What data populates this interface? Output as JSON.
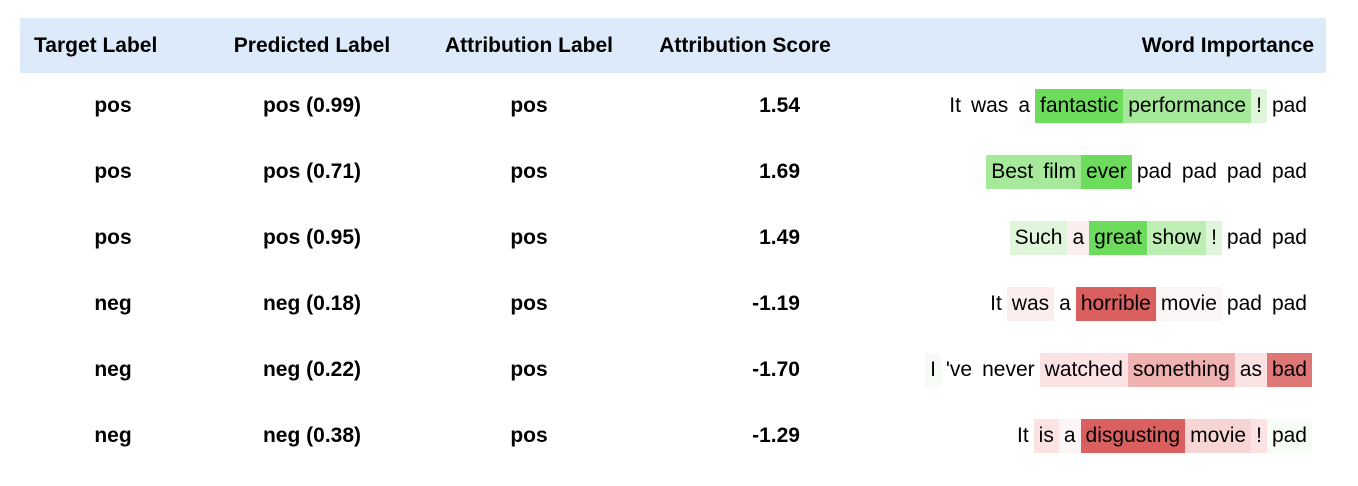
{
  "header": {
    "target_label": "Target Label",
    "predicted_label": "Predicted Label",
    "attribution_label": "Attribution Label",
    "attribution_score": "Attribution Score",
    "word_importance": "Word Importance"
  },
  "rows": [
    {
      "target": "pos",
      "predicted": "pos (0.99)",
      "attribution_label": "pos",
      "score": "1.54",
      "words": [
        {
          "text": "It",
          "color": "#ffffff"
        },
        {
          "text": "was",
          "color": "#ffffff"
        },
        {
          "text": "a",
          "color": "#ffffff"
        },
        {
          "text": "fantastic",
          "color": "#6ddc5c"
        },
        {
          "text": "performance",
          "color": "#a6e99a"
        },
        {
          "text": "!",
          "color": "#dff6da"
        },
        {
          "text": "pad",
          "color": "#ffffff"
        }
      ]
    },
    {
      "target": "pos",
      "predicted": "pos (0.71)",
      "attribution_label": "pos",
      "score": "1.69",
      "words": [
        {
          "text": "Best",
          "color": "#a6e99a"
        },
        {
          "text": "film",
          "color": "#a6e99a"
        },
        {
          "text": "ever",
          "color": "#6ddc5c"
        },
        {
          "text": "pad",
          "color": "#ffffff"
        },
        {
          "text": "pad",
          "color": "#ffffff"
        },
        {
          "text": "pad",
          "color": "#ffffff"
        },
        {
          "text": "pad",
          "color": "#ffffff"
        }
      ]
    },
    {
      "target": "pos",
      "predicted": "pos (0.95)",
      "attribution_label": "pos",
      "score": "1.49",
      "words": [
        {
          "text": "Such",
          "color": "#dff6da"
        },
        {
          "text": "a",
          "color": "#fcedee"
        },
        {
          "text": "great",
          "color": "#6ddc5c"
        },
        {
          "text": "show",
          "color": "#bdeeb3"
        },
        {
          "text": "!",
          "color": "#dff6da"
        },
        {
          "text": "pad",
          "color": "#ffffff"
        },
        {
          "text": "pad",
          "color": "#ffffff"
        }
      ]
    },
    {
      "target": "neg",
      "predicted": "neg (0.18)",
      "attribution_label": "pos",
      "score": "-1.19",
      "words": [
        {
          "text": "It",
          "color": "#ffffff"
        },
        {
          "text": "was",
          "color": "#fcedee"
        },
        {
          "text": "a",
          "color": "#ffffff"
        },
        {
          "text": "horrible",
          "color": "#d9605f"
        },
        {
          "text": "movie",
          "color": "#fcf5f5"
        },
        {
          "text": "pad",
          "color": "#ffffff"
        },
        {
          "text": "pad",
          "color": "#ffffff"
        }
      ]
    },
    {
      "target": "neg",
      "predicted": "neg (0.22)",
      "attribution_label": "pos",
      "score": "-1.70",
      "words": [
        {
          "text": "I",
          "color": "#f6fcf5"
        },
        {
          "text": "'ve",
          "color": "#ffffff"
        },
        {
          "text": "never",
          "color": "#ffffff"
        },
        {
          "text": "watched",
          "color": "#fbe3e3"
        },
        {
          "text": "something",
          "color": "#f0b2b1"
        },
        {
          "text": "as",
          "color": "#fbe3e3"
        },
        {
          "text": "bad",
          "color": "#df7776"
        }
      ]
    },
    {
      "target": "neg",
      "predicted": "neg (0.38)",
      "attribution_label": "pos",
      "score": "-1.29",
      "words": [
        {
          "text": "It",
          "color": "#ffffff"
        },
        {
          "text": "is",
          "color": "#fbe3e3"
        },
        {
          "text": "a",
          "color": "#fcf5f5"
        },
        {
          "text": "disgusting",
          "color": "#d9605f"
        },
        {
          "text": "movie",
          "color": "#f7d5d5"
        },
        {
          "text": "!",
          "color": "#fbe3e3"
        },
        {
          "text": "pad",
          "color": "#f6fcf5"
        }
      ]
    }
  ]
}
